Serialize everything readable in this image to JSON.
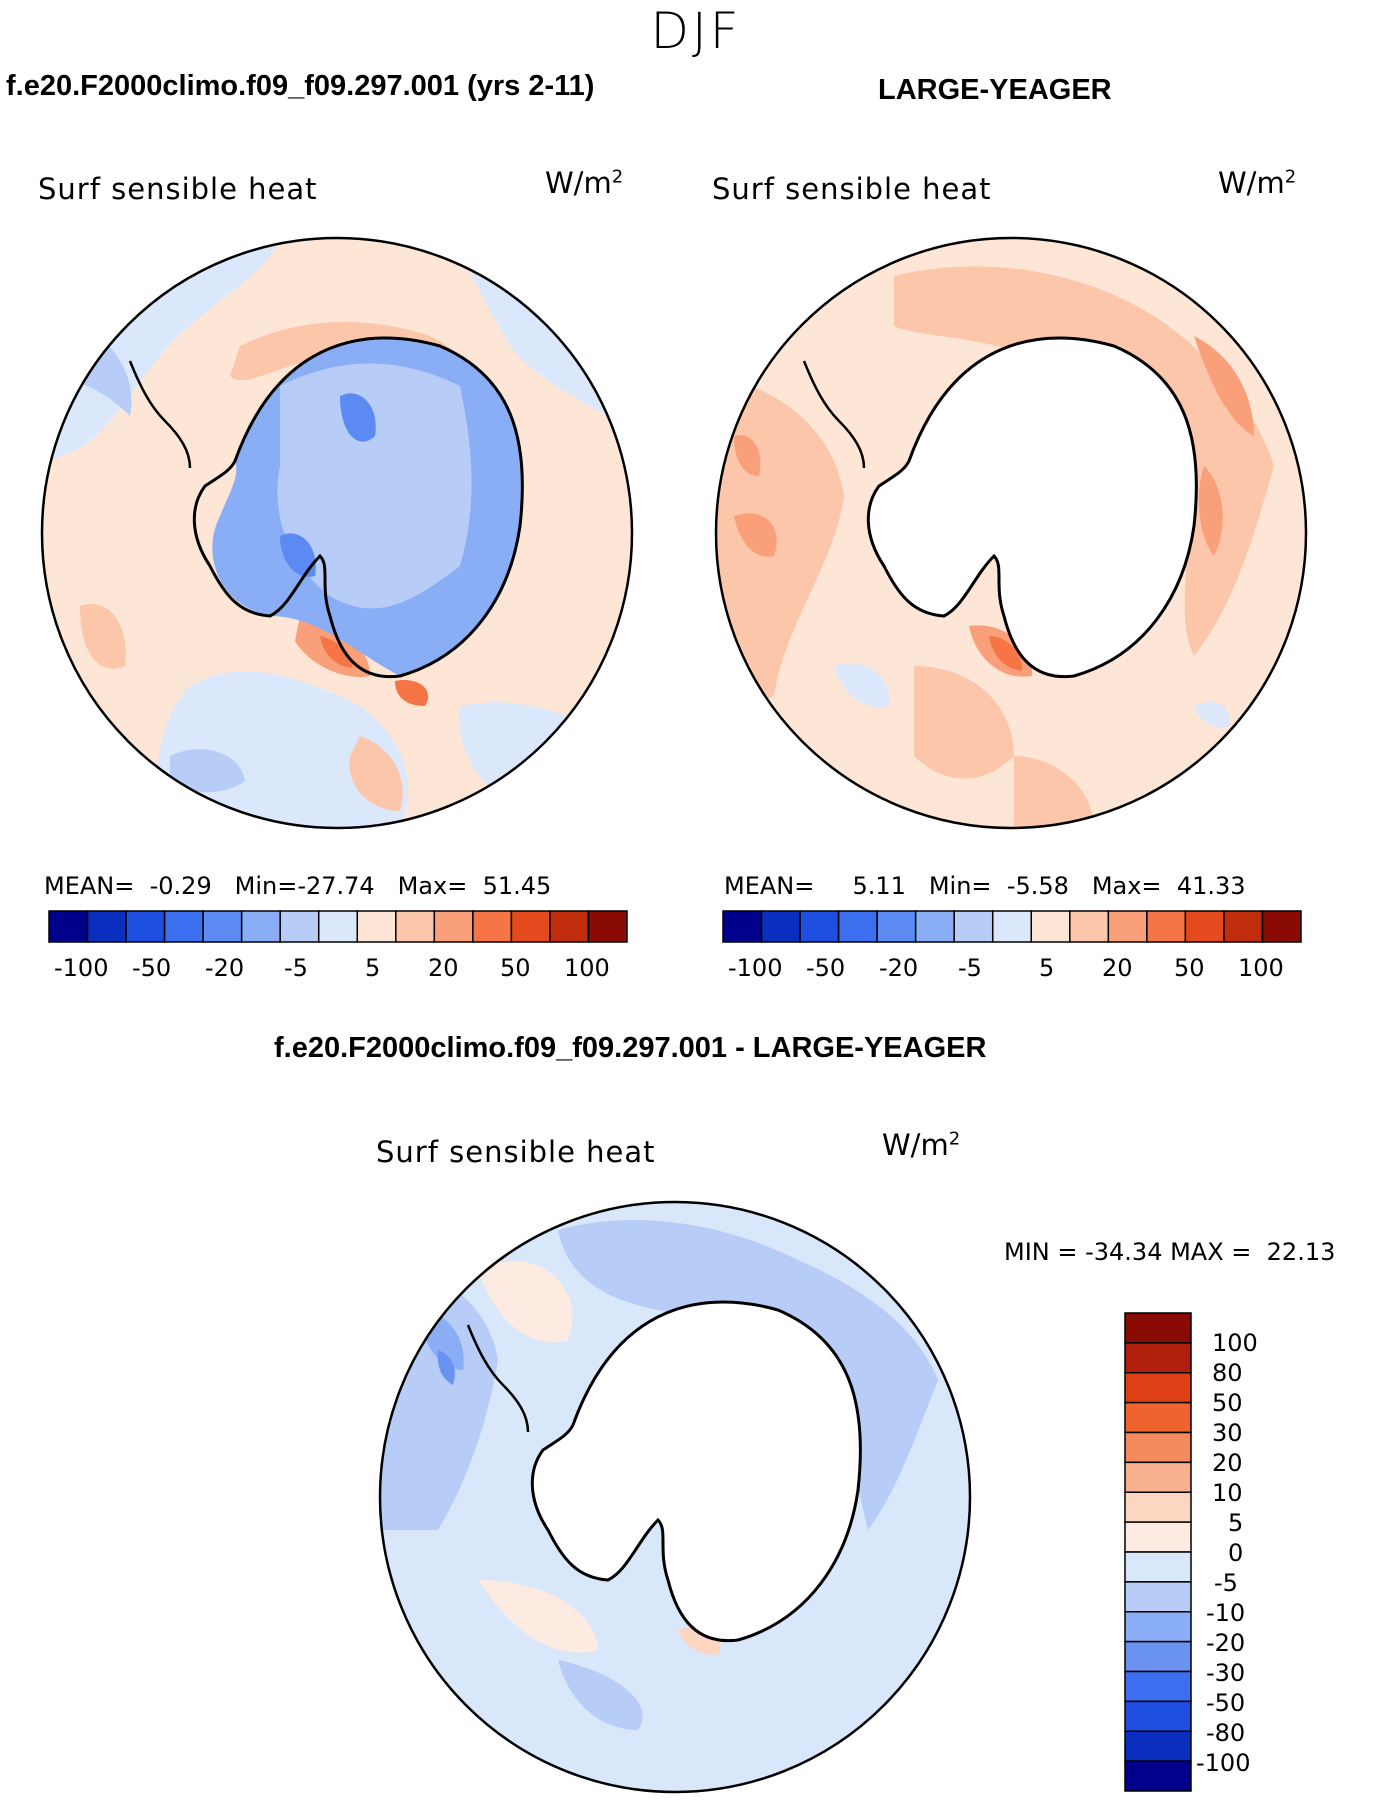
{
  "season": "DJF",
  "panels": [
    {
      "title": "f.e20.F2000climo.f09_f09.297.001 (yrs 2-11)",
      "variable": "Surf sensible heat",
      "units_base": "W/m",
      "units_exp": "2",
      "stats": {
        "mean_label": "MEAN=",
        "mean": "-0.29",
        "min_label": "Min=",
        "min": "-27.74",
        "max_label": "Max=",
        "max": "51.45"
      },
      "colorbar_ticks": [
        "-100",
        "-50",
        "-20",
        "-5",
        "5",
        "20",
        "50",
        "100"
      ]
    },
    {
      "title": "LARGE-YEAGER",
      "variable": "Surf sensible heat",
      "units_base": "W/m",
      "units_exp": "2",
      "stats": {
        "mean_label": "MEAN=",
        "mean": "5.11",
        "min_label": "Min=",
        "min": "-5.58",
        "max_label": "Max=",
        "max": "41.33"
      },
      "colorbar_ticks": [
        "-100",
        "-50",
        "-20",
        "-5",
        "5",
        "20",
        "50",
        "100"
      ]
    }
  ],
  "diff_panel": {
    "title": "f.e20.F2000climo.f09_f09.297.001 - LARGE-YEAGER",
    "variable": "Surf sensible heat",
    "units_base": "W/m",
    "units_exp": "2",
    "minmax": "MIN = -34.34 MAX =  22.13",
    "colorbar_labels": [
      "100",
      "80",
      "50",
      "30",
      "20",
      "10",
      "5",
      "0",
      "-5",
      "-10",
      "-20",
      "-30",
      "-50",
      "-80",
      "-100"
    ]
  },
  "colors": {
    "horizontal_scale": [
      "#00008c",
      "#0a2fbf",
      "#1f4fe0",
      "#3c6ff0",
      "#5b8bf2",
      "#8aaef5",
      "#b7cdf8",
      "#dbe7fb",
      "#fde6d6",
      "#fcc6aa",
      "#f9a07a",
      "#f57547",
      "#e34b1f",
      "#c02d0c",
      "#8a0a04"
    ],
    "vertical_scale_top_to_bottom": [
      "#8a0a04",
      "#b21e0c",
      "#e03e14",
      "#f0622e",
      "#f58a5e",
      "#f9b08e",
      "#fdd6c2",
      "#fdeae0",
      "#d9e7fb",
      "#b7cdf8",
      "#8aaef5",
      "#6a93f1",
      "#3c6ff0",
      "#1f4fe0",
      "#0a2fbf",
      "#00008c"
    ],
    "land": "#ffffff",
    "coast": "#000000"
  }
}
